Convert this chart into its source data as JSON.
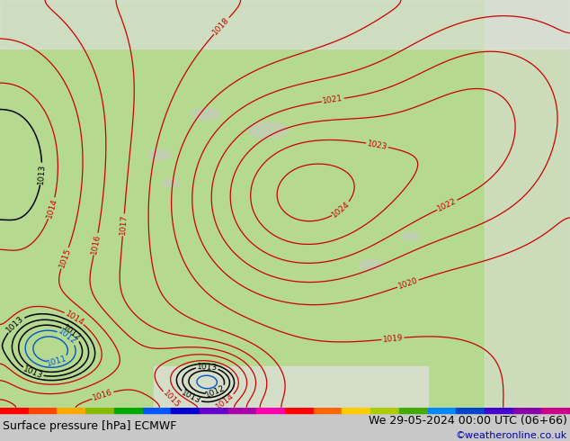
{
  "title_left": "Surface pressure [hPa] ECMWF",
  "title_right": "We 29-05-2024 00:00 UTC (06+66)",
  "copyright": "©weatheronline.co.uk",
  "land_color": "#b5d98f",
  "sea_color": "#e0e0e0",
  "mountain_color": "#c8c8c8",
  "bar_color": "#c8c8c8",
  "isobar_color_red": "#cc0000",
  "isobar_color_black": "#000000",
  "isobar_color_blue": "#0055cc",
  "label_fontsize": 6.5,
  "title_fontsize": 9,
  "copyright_fontsize": 8,
  "bar_colors": [
    "#ff0000",
    "#ff4400",
    "#ffaa00",
    "#88bb00",
    "#00aa00",
    "#0055ff",
    "#0000cc",
    "#6600cc",
    "#aa00aa",
    "#ff00aa",
    "#ff0000",
    "#ff6600",
    "#ffcc00",
    "#aacc00",
    "#44aa00",
    "#0088ff",
    "#0044cc",
    "#4400cc",
    "#8800aa",
    "#cc0088"
  ]
}
